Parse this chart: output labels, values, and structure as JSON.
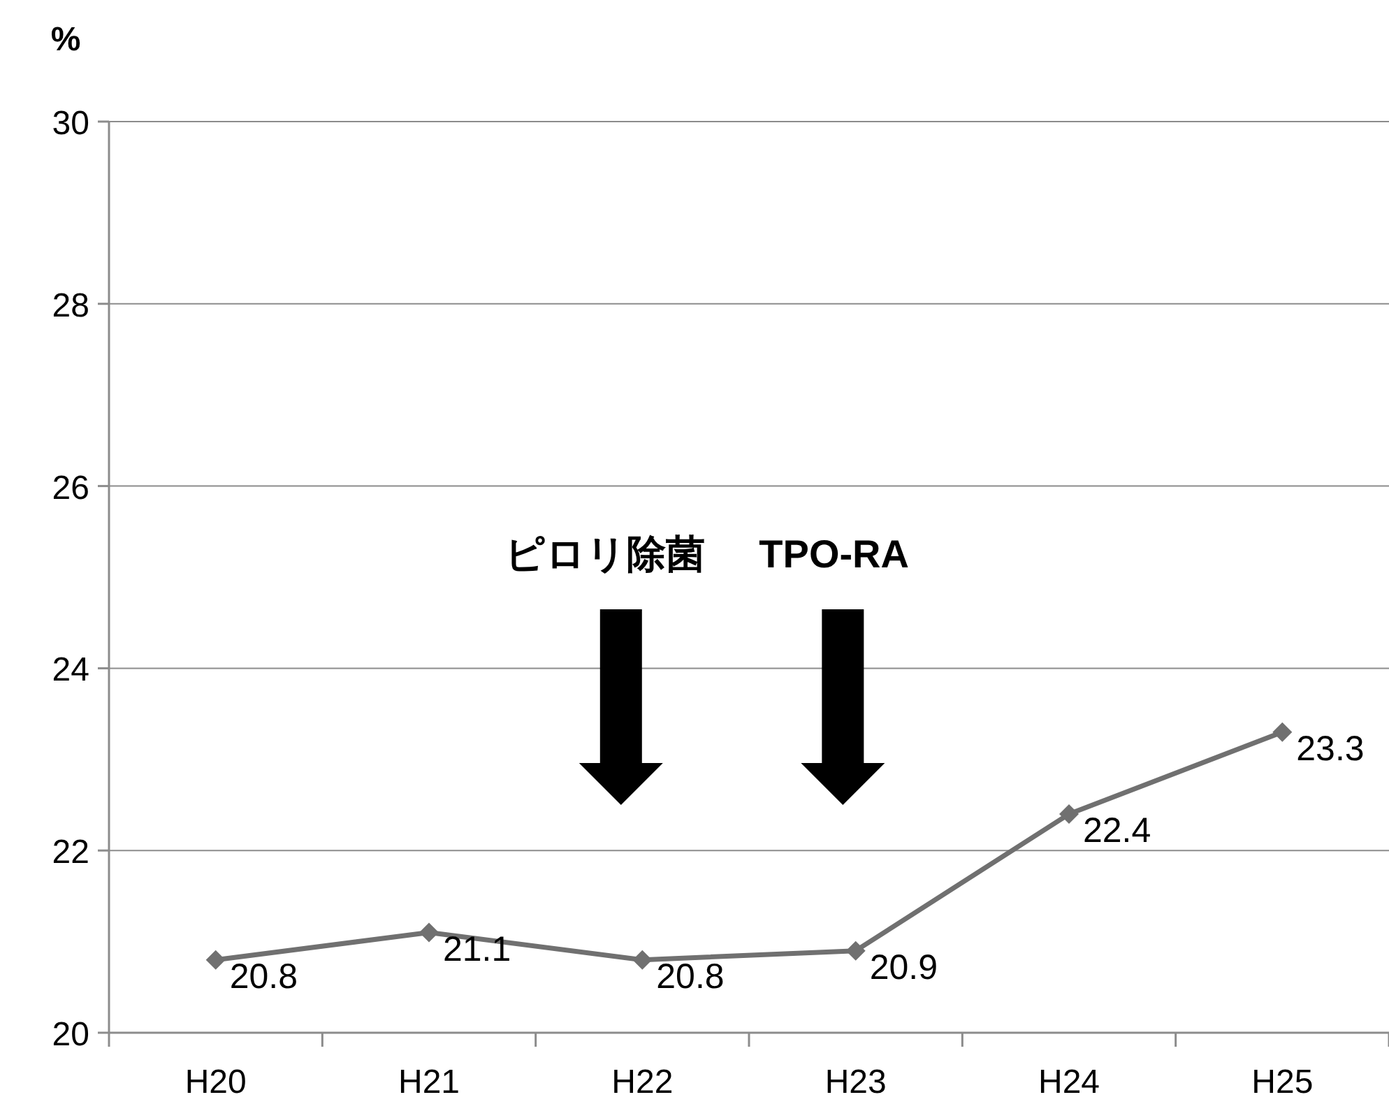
{
  "chart_data": {
    "type": "line",
    "ylabel": "%",
    "categories": [
      "H20",
      "H21",
      "H22",
      "H23",
      "H24",
      "H25"
    ],
    "series": [
      {
        "color": "#707070",
        "values": [
          20.8,
          21.1,
          20.8,
          20.9,
          22.4,
          23.3
        ]
      }
    ],
    "ylim": [
      20,
      30
    ],
    "yticks": [
      20,
      22,
      24,
      26,
      28,
      30
    ],
    "grid": "y",
    "marker": "diamond",
    "line_style": "solid",
    "data_labels": true,
    "annotations": [
      "ピロリ除菌",
      "TPO-RA"
    ]
  }
}
